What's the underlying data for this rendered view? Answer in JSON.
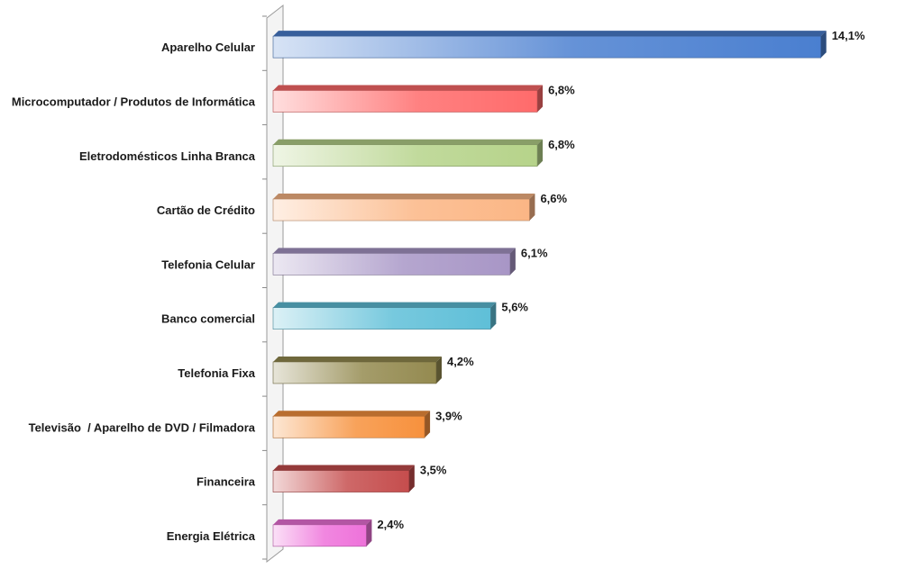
{
  "chart_data": {
    "type": "bar",
    "orientation": "horizontal",
    "title": "",
    "xlabel": "",
    "ylabel": "",
    "xlim": [
      0,
      16
    ],
    "grid": false,
    "legend": "none",
    "categories": [
      "Aparelho Celular",
      "Microcomputador / Produtos de Informática",
      "Eletrodomésticos Linha Branca",
      "Cartão de Crédito",
      "Telefonia Celular",
      "Banco comercial",
      "Telefonia Fixa",
      "Televisão  / Aparelho de DVD / Filmadora",
      "Financeira",
      "Energia Elétrica"
    ],
    "values": [
      14.1,
      6.8,
      6.8,
      6.6,
      6.1,
      5.6,
      4.2,
      3.9,
      3.5,
      2.4
    ],
    "value_labels": [
      "14,1%",
      "6,8%",
      "6,8%",
      "6,6%",
      "6,1%",
      "5,6%",
      "4,2%",
      "3,9%",
      "3,5%",
      "2,4%"
    ],
    "colors": [
      "#4a7fd0",
      "#ff6b6b",
      "#b6d38a",
      "#fbb685",
      "#a896c6",
      "#5fbfd8",
      "#948a50",
      "#f7913d",
      "#c54d4d",
      "#ee72da"
    ]
  }
}
